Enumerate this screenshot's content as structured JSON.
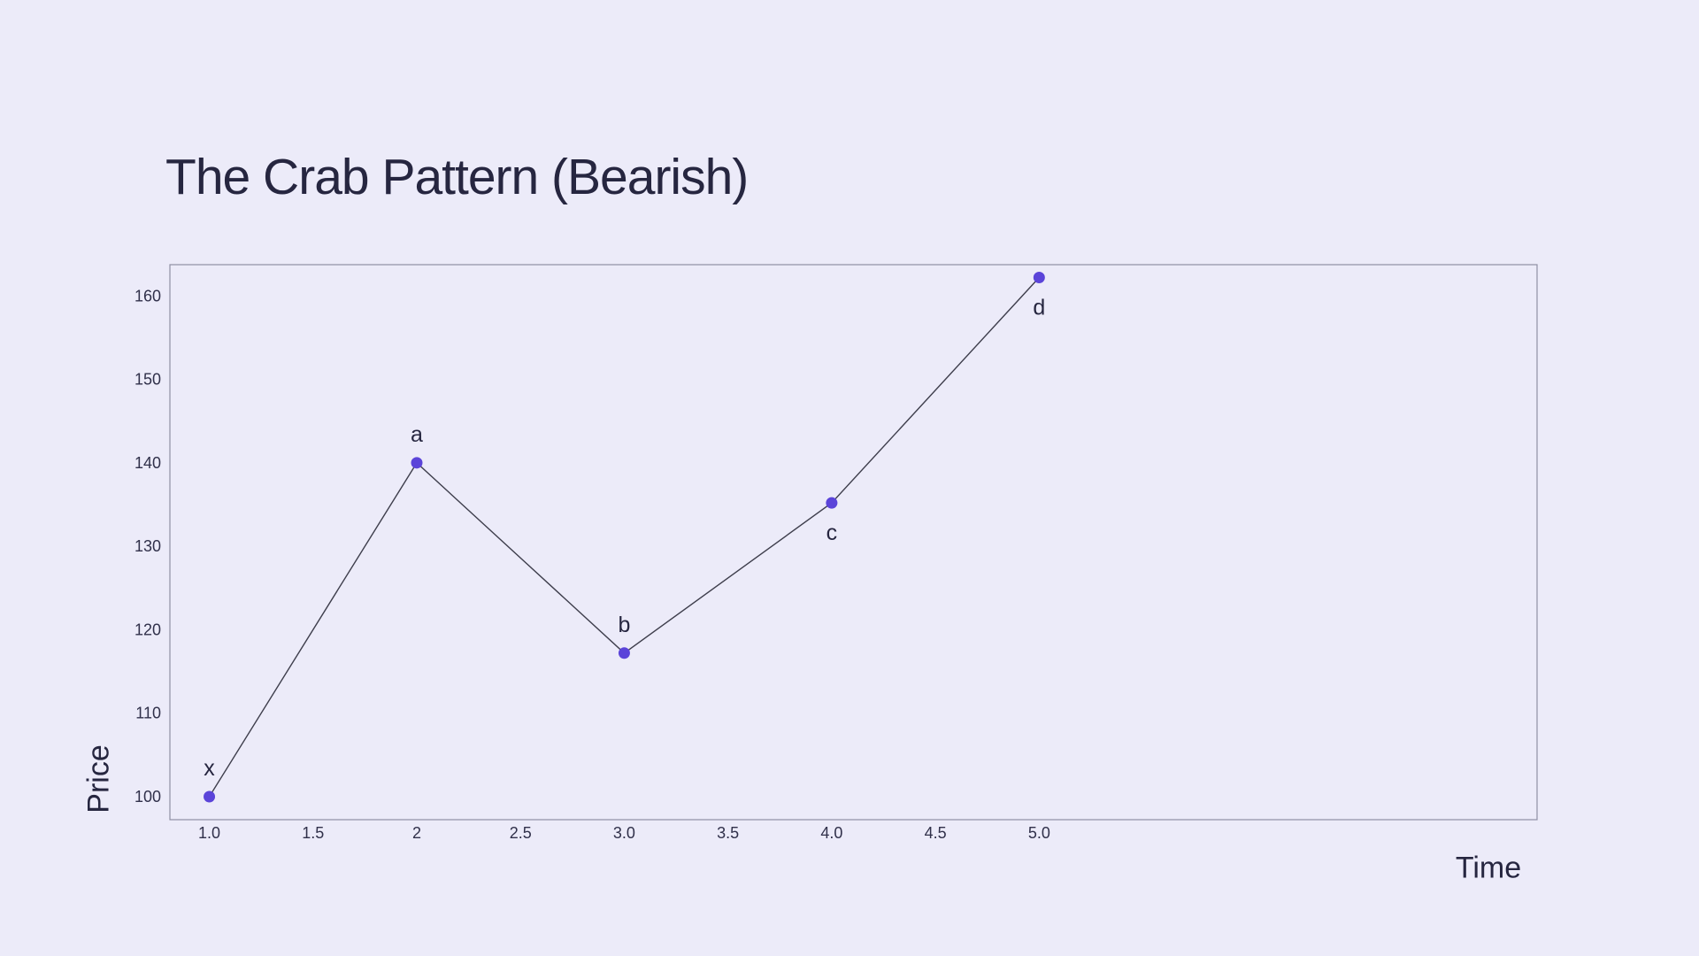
{
  "colors": {
    "background": "#ECEBF9",
    "accent": "#5B44D9",
    "line": "#3E3E4C",
    "plot_border": "#8F8FA3",
    "text": "#262640",
    "tick_text": "#30304A"
  },
  "chart_data": {
    "type": "line",
    "title": "The Crab Pattern (Bearish)",
    "xlabel": "Time",
    "ylabel": "Price",
    "points": [
      {
        "label": "x",
        "x": 1,
        "y": 100,
        "label_position": "above"
      },
      {
        "label": "a",
        "x": 2,
        "y": 140,
        "label_position": "above"
      },
      {
        "label": "b",
        "x": 3,
        "y": 117.2,
        "label_position": "above"
      },
      {
        "label": "c",
        "x": 4,
        "y": 135.2,
        "label_position": "below"
      },
      {
        "label": "d",
        "x": 5,
        "y": 162.2,
        "label_position": "below"
      }
    ],
    "x_ticks": [
      {
        "value": 1.0,
        "label": "1.0"
      },
      {
        "value": 1.5,
        "label": "1.5"
      },
      {
        "value": 2.0,
        "label": "2"
      },
      {
        "value": 2.5,
        "label": "2.5"
      },
      {
        "value": 3.0,
        "label": "3.0"
      },
      {
        "value": 3.5,
        "label": "3.5"
      },
      {
        "value": 4.0,
        "label": "4.0"
      },
      {
        "value": 4.5,
        "label": "4.5"
      },
      {
        "value": 5.0,
        "label": "5.0"
      }
    ],
    "y_ticks": [
      {
        "value": 100,
        "label": "100"
      },
      {
        "value": 110,
        "label": "110"
      },
      {
        "value": 120,
        "label": "120"
      },
      {
        "value": 130,
        "label": "130"
      },
      {
        "value": 140,
        "label": "140"
      },
      {
        "value": 150,
        "label": "150"
      },
      {
        "value": 160,
        "label": "160"
      }
    ],
    "xlim": [
      0.81,
      7.4
    ],
    "ylim": [
      97.24,
      163.74
    ],
    "grid": false,
    "legend": false
  }
}
